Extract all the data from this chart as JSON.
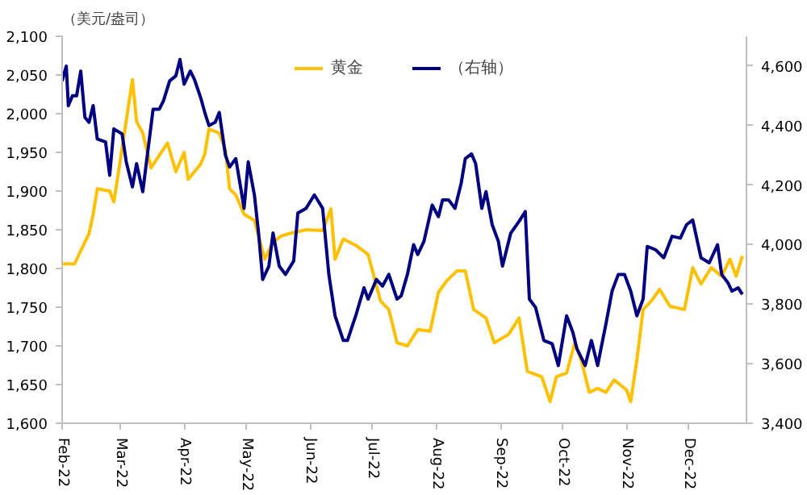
{
  "chart_data": {
    "type": "line",
    "ylabel": "（美元/盎司）",
    "legend": "top",
    "grid": false,
    "marker": "none",
    "line_style": "solid",
    "xlim": [
      "2022-02-01",
      "2022-12-29"
    ],
    "xticks": [
      {
        "value": "2022-02-01",
        "label": "Feb-22"
      },
      {
        "value": "2022-03-01",
        "label": "Mar-22"
      },
      {
        "value": "2022-04-01",
        "label": "Apr-22"
      },
      {
        "value": "2022-05-01",
        "label": "May-22"
      },
      {
        "value": "2022-06-01",
        "label": "Jun-22"
      },
      {
        "value": "2022-07-01",
        "label": "Jul-22"
      },
      {
        "value": "2022-08-01",
        "label": "Aug-22"
      },
      {
        "value": "2022-09-01",
        "label": "Sep-22"
      },
      {
        "value": "2022-10-01",
        "label": "Oct-22"
      },
      {
        "value": "2022-11-01",
        "label": "Nov-22"
      },
      {
        "value": "2022-12-01",
        "label": "Dec-22"
      }
    ],
    "ylim": [
      1600,
      2100
    ],
    "yticks": [
      {
        "value": 1600,
        "label": "1,600"
      },
      {
        "value": 1650,
        "label": "1,650"
      },
      {
        "value": 1700,
        "label": "1,700"
      },
      {
        "value": 1750,
        "label": "1,750"
      },
      {
        "value": 1800,
        "label": "1,800"
      },
      {
        "value": 1850,
        "label": "1,850"
      },
      {
        "value": 1900,
        "label": "1,900"
      },
      {
        "value": 1950,
        "label": "1,950"
      },
      {
        "value": 2000,
        "label": "2,000"
      },
      {
        "value": 2050,
        "label": "2,050"
      },
      {
        "value": 2100,
        "label": "2,100"
      }
    ],
    "y2lim": [
      3400,
      4700
    ],
    "y2ticks": [
      {
        "value": 3400,
        "label": "3,400"
      },
      {
        "value": 3600,
        "label": "3,600"
      },
      {
        "value": 3800,
        "label": "3,800"
      },
      {
        "value": 4000,
        "label": "4,000"
      },
      {
        "value": 4200,
        "label": "4,200"
      },
      {
        "value": 4400,
        "label": "4,400"
      },
      {
        "value": 4600,
        "label": "4,600"
      }
    ],
    "series": [
      {
        "name": "黄金",
        "color": "#ffc000",
        "x": [
          "2022-02-01",
          "2022-02-07",
          "2022-02-12",
          "2022-02-14",
          "2022-02-16",
          "2022-02-18",
          "2022-02-24",
          "2022-02-26",
          "2022-02-28",
          "2022-03-07",
          "2022-03-09",
          "2022-03-12",
          "2022-03-16",
          "2022-03-24",
          "2022-03-28",
          "2022-04-01",
          "2022-04-03",
          "2022-04-09",
          "2022-04-11",
          "2022-04-13",
          "2022-04-18",
          "2022-04-21",
          "2022-04-23",
          "2022-04-26",
          "2022-04-30",
          "2022-05-05",
          "2022-05-10",
          "2022-05-14",
          "2022-05-18",
          "2022-05-22",
          "2022-05-30",
          "2022-06-07",
          "2022-06-11",
          "2022-06-13",
          "2022-06-17",
          "2022-06-23",
          "2022-06-29",
          "2022-07-05",
          "2022-07-09",
          "2022-07-13",
          "2022-07-18",
          "2022-07-23",
          "2022-07-29",
          "2022-08-02",
          "2022-08-06",
          "2022-08-11",
          "2022-08-15",
          "2022-08-19",
          "2022-08-25",
          "2022-08-29",
          "2022-09-05",
          "2022-09-10",
          "2022-09-14",
          "2022-09-21",
          "2022-09-25",
          "2022-09-28",
          "2022-10-03",
          "2022-10-07",
          "2022-10-10",
          "2022-10-14",
          "2022-10-18",
          "2022-10-22",
          "2022-10-26",
          "2022-11-01",
          "2022-11-03",
          "2022-11-06",
          "2022-11-09",
          "2022-11-13",
          "2022-11-17",
          "2022-11-22",
          "2022-11-29",
          "2022-12-03",
          "2022-12-07",
          "2022-12-12",
          "2022-12-17",
          "2022-12-21",
          "2022-12-24",
          "2022-12-27"
        ],
        "values": [
          1806,
          1806,
          1834,
          1845,
          1870,
          1903,
          1900,
          1886,
          1920,
          2044,
          1990,
          1975,
          1930,
          1962,
          1925,
          1950,
          1915,
          1935,
          1948,
          1980,
          1975,
          1953,
          1903,
          1895,
          1870,
          1862,
          1812,
          1834,
          1842,
          1845,
          1850,
          1849,
          1877,
          1812,
          1838,
          1830,
          1818,
          1758,
          1747,
          1704,
          1700,
          1721,
          1719,
          1769,
          1784,
          1797,
          1797,
          1747,
          1736,
          1704,
          1715,
          1736,
          1667,
          1660,
          1628,
          1660,
          1665,
          1704,
          1682,
          1640,
          1645,
          1640,
          1656,
          1643,
          1628,
          1682,
          1747,
          1758,
          1773,
          1751,
          1747,
          1801,
          1780,
          1801,
          1790,
          1812,
          1790,
          1816
        ]
      },
      {
        "name": "（右轴）",
        "color": "#000080",
        "axis": "y2",
        "x": [
          "2022-02-01",
          "2022-02-03",
          "2022-02-04",
          "2022-02-06",
          "2022-02-08",
          "2022-02-10",
          "2022-02-12",
          "2022-02-14",
          "2022-02-16",
          "2022-02-18",
          "2022-02-22",
          "2022-02-24",
          "2022-02-26",
          "2022-03-02",
          "2022-03-04",
          "2022-03-07",
          "2022-03-09",
          "2022-03-12",
          "2022-03-14",
          "2022-03-17",
          "2022-03-20",
          "2022-03-22",
          "2022-03-25",
          "2022-03-28",
          "2022-03-30",
          "2022-04-01",
          "2022-04-04",
          "2022-04-06",
          "2022-04-09",
          "2022-04-11",
          "2022-04-13",
          "2022-04-16",
          "2022-04-18",
          "2022-04-21",
          "2022-04-23",
          "2022-04-26",
          "2022-04-28",
          "2022-04-30",
          "2022-05-02",
          "2022-05-05",
          "2022-05-07",
          "2022-05-09",
          "2022-05-12",
          "2022-05-14",
          "2022-05-17",
          "2022-05-20",
          "2022-05-24",
          "2022-05-26",
          "2022-05-30",
          "2022-06-03",
          "2022-06-07",
          "2022-06-10",
          "2022-06-13",
          "2022-06-17",
          "2022-06-19",
          "2022-06-23",
          "2022-06-27",
          "2022-06-29",
          "2022-07-03",
          "2022-07-06",
          "2022-07-09",
          "2022-07-13",
          "2022-07-15",
          "2022-07-18",
          "2022-07-21",
          "2022-07-23",
          "2022-07-26",
          "2022-07-30",
          "2022-08-02",
          "2022-08-04",
          "2022-08-07",
          "2022-08-10",
          "2022-08-13",
          "2022-08-15",
          "2022-08-18",
          "2022-08-20",
          "2022-08-23",
          "2022-08-25",
          "2022-08-28",
          "2022-08-31",
          "2022-09-02",
          "2022-09-06",
          "2022-09-10",
          "2022-09-13",
          "2022-09-15",
          "2022-09-18",
          "2022-09-22",
          "2022-09-26",
          "2022-09-29",
          "2022-10-03",
          "2022-10-06",
          "2022-10-08",
          "2022-10-12",
          "2022-10-15",
          "2022-10-18",
          "2022-10-22",
          "2022-10-25",
          "2022-10-28",
          "2022-10-31",
          "2022-11-03",
          "2022-11-06",
          "2022-11-09",
          "2022-11-11",
          "2022-11-15",
          "2022-11-19",
          "2022-11-23",
          "2022-11-27",
          "2022-11-30",
          "2022-12-03",
          "2022-12-07",
          "2022-12-11",
          "2022-12-15",
          "2022-12-17",
          "2022-12-20",
          "2022-12-22",
          "2022-12-25",
          "2022-12-27"
        ],
        "values": [
          4550,
          4600,
          4467,
          4500,
          4500,
          4583,
          4428,
          4411,
          4467,
          4355,
          4345,
          4233,
          4389,
          4372,
          4278,
          4194,
          4272,
          4178,
          4289,
          4455,
          4455,
          4483,
          4550,
          4567,
          4622,
          4539,
          4583,
          4555,
          4494,
          4444,
          4400,
          4411,
          4444,
          4300,
          4261,
          4289,
          4206,
          4122,
          4278,
          4167,
          4039,
          3883,
          3928,
          4039,
          3928,
          3900,
          3945,
          4106,
          4122,
          4167,
          4122,
          3900,
          3761,
          3678,
          3678,
          3761,
          3855,
          3817,
          3883,
          3861,
          3900,
          3817,
          3828,
          3900,
          4000,
          3967,
          4011,
          4133,
          4094,
          4150,
          4150,
          4122,
          4206,
          4289,
          4305,
          4272,
          4122,
          4178,
          4067,
          4011,
          3928,
          4039,
          4078,
          4111,
          3817,
          3789,
          3678,
          3667,
          3594,
          3761,
          3706,
          3650,
          3594,
          3678,
          3594,
          3733,
          3844,
          3900,
          3900,
          3844,
          3761,
          3817,
          3994,
          3983,
          3956,
          4028,
          4022,
          4067,
          4083,
          3956,
          3939,
          4000,
          3900,
          3872,
          3844,
          3855,
          3833
        ]
      }
    ]
  }
}
